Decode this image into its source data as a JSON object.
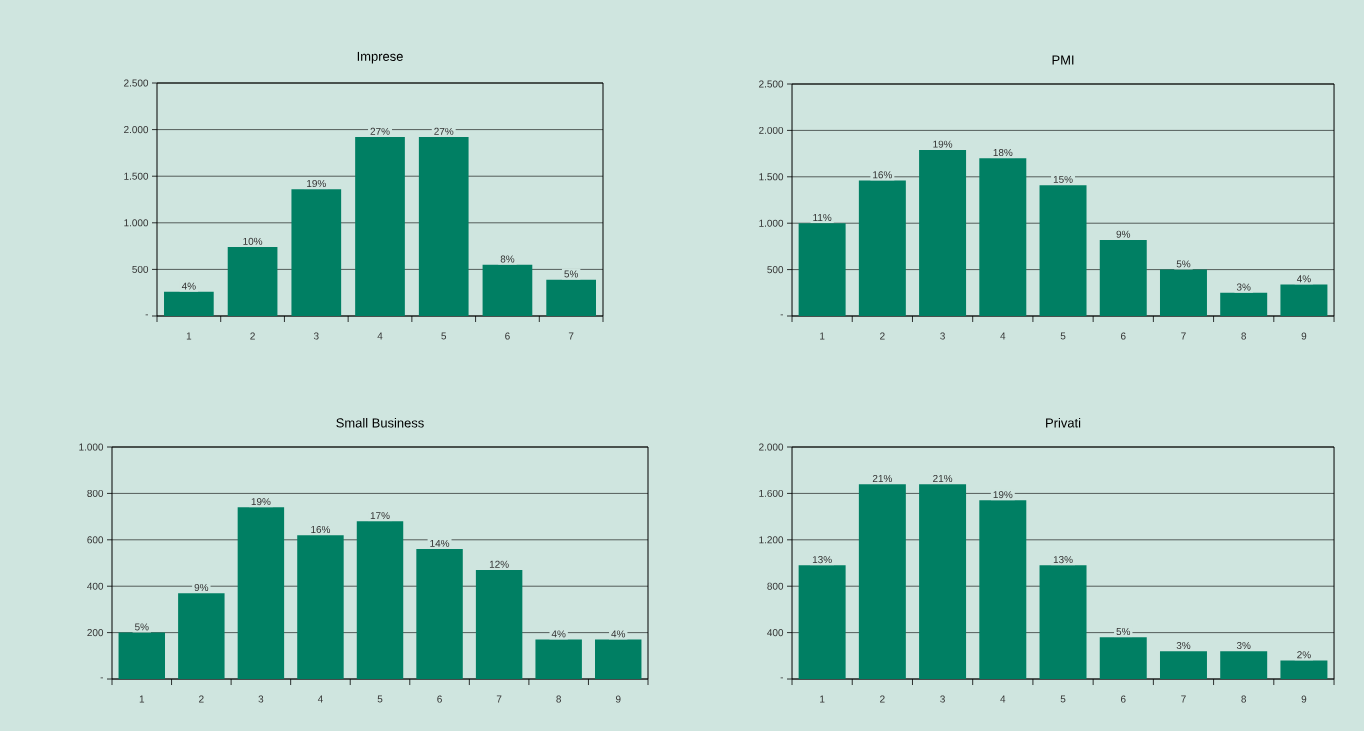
{
  "chart_data": [
    {
      "type": "bar",
      "title": "Imprese",
      "categories": [
        "1",
        "2",
        "3",
        "4",
        "5",
        "6",
        "7"
      ],
      "values": [
        260,
        740,
        1360,
        1920,
        1920,
        550,
        390
      ],
      "color": "#007f63",
      "ylim": [
        0,
        2500
      ],
      "yticks": [
        {
          "value": 0,
          "label": "-"
        },
        {
          "value": 500,
          "label": "500"
        },
        {
          "value": 1000,
          "label": "1.000"
        },
        {
          "value": 1500,
          "label": "1.500"
        },
        {
          "value": 2000,
          "label": "2.000"
        },
        {
          "value": 2500,
          "label": "2.500"
        }
      ],
      "grid": "y",
      "annotations": [
        {
          "text": "4%",
          "x": "1",
          "y": 260
        },
        {
          "text": "10%",
          "x": "2",
          "y": 740
        },
        {
          "text": "19%",
          "x": "3",
          "y": 1360
        },
        {
          "text": "27%",
          "x": "4",
          "y": 1920
        },
        {
          "text": "27%",
          "x": "5",
          "y": 1920
        },
        {
          "text": "8%",
          "x": "6",
          "y": 550
        },
        {
          "text": "5%",
          "x": "7",
          "y": 390
        }
      ]
    },
    {
      "type": "bar",
      "title": "PMI",
      "categories": [
        "1",
        "2",
        "3",
        "4",
        "5",
        "6",
        "7",
        "8",
        "9"
      ],
      "values": [
        1000,
        1460,
        1790,
        1700,
        1410,
        820,
        500,
        250,
        340
      ],
      "color": "#007f63",
      "ylim": [
        0,
        2500
      ],
      "yticks": [
        {
          "value": 0,
          "label": "-"
        },
        {
          "value": 500,
          "label": "500"
        },
        {
          "value": 1000,
          "label": "1.000"
        },
        {
          "value": 1500,
          "label": "1.500"
        },
        {
          "value": 2000,
          "label": "2.000"
        },
        {
          "value": 2500,
          "label": "2.500"
        }
      ],
      "grid": "y",
      "annotations": [
        {
          "text": "11%",
          "x": "1",
          "y": 1000
        },
        {
          "text": "16%",
          "x": "2",
          "y": 1460
        },
        {
          "text": "19%",
          "x": "3",
          "y": 1790
        },
        {
          "text": "18%",
          "x": "4",
          "y": 1700
        },
        {
          "text": "15%",
          "x": "5",
          "y": 1410
        },
        {
          "text": "9%",
          "x": "6",
          "y": 820
        },
        {
          "text": "5%",
          "x": "7",
          "y": 500
        },
        {
          "text": "3%",
          "x": "8",
          "y": 250
        },
        {
          "text": "4%",
          "x": "9",
          "y": 340
        }
      ]
    },
    {
      "type": "bar",
      "title": "Small Business",
      "categories": [
        "1",
        "2",
        "3",
        "4",
        "5",
        "6",
        "7",
        "8",
        "9"
      ],
      "values": [
        200,
        370,
        740,
        620,
        680,
        560,
        470,
        170,
        170
      ],
      "color": "#007f63",
      "ylim": [
        0,
        1000
      ],
      "yticks": [
        {
          "value": 0,
          "label": "-"
        },
        {
          "value": 200,
          "label": "200"
        },
        {
          "value": 400,
          "label": "400"
        },
        {
          "value": 600,
          "label": "600"
        },
        {
          "value": 800,
          "label": "800"
        },
        {
          "value": 1000,
          "label": "1.000"
        }
      ],
      "grid": "y",
      "annotations": [
        {
          "text": "5%",
          "x": "1",
          "y": 200
        },
        {
          "text": "9%",
          "x": "2",
          "y": 370
        },
        {
          "text": "19%",
          "x": "3",
          "y": 740
        },
        {
          "text": "16%",
          "x": "4",
          "y": 620
        },
        {
          "text": "17%",
          "x": "5",
          "y": 680
        },
        {
          "text": "14%",
          "x": "6",
          "y": 560
        },
        {
          "text": "12%",
          "x": "7",
          "y": 470
        },
        {
          "text": "4%",
          "x": "8",
          "y": 170
        },
        {
          "text": "4%",
          "x": "9",
          "y": 170
        }
      ]
    },
    {
      "type": "bar",
      "title": "Privati",
      "categories": [
        "1",
        "2",
        "3",
        "4",
        "5",
        "6",
        "7",
        "8",
        "9"
      ],
      "values": [
        980,
        1680,
        1680,
        1540,
        980,
        360,
        240,
        240,
        160
      ],
      "color": "#007f63",
      "ylim": [
        0,
        2000
      ],
      "yticks": [
        {
          "value": 0,
          "label": "-"
        },
        {
          "value": 400,
          "label": "400"
        },
        {
          "value": 800,
          "label": "800"
        },
        {
          "value": 1200,
          "label": "1.200"
        },
        {
          "value": 1600,
          "label": "1.600"
        },
        {
          "value": 2000,
          "label": "2.000"
        }
      ],
      "grid": "y",
      "annotations": [
        {
          "text": "13%",
          "x": "1",
          "y": 980
        },
        {
          "text": "21%",
          "x": "2",
          "y": 1680
        },
        {
          "text": "21%",
          "x": "3",
          "y": 1680
        },
        {
          "text": "19%",
          "x": "4",
          "y": 1540
        },
        {
          "text": "13%",
          "x": "5",
          "y": 980
        },
        {
          "text": "5%",
          "x": "6",
          "y": 360
        },
        {
          "text": "3%",
          "x": "7",
          "y": 240
        },
        {
          "text": "3%",
          "x": "8",
          "y": 240
        },
        {
          "text": "2%",
          "x": "9",
          "y": 160
        }
      ]
    }
  ]
}
